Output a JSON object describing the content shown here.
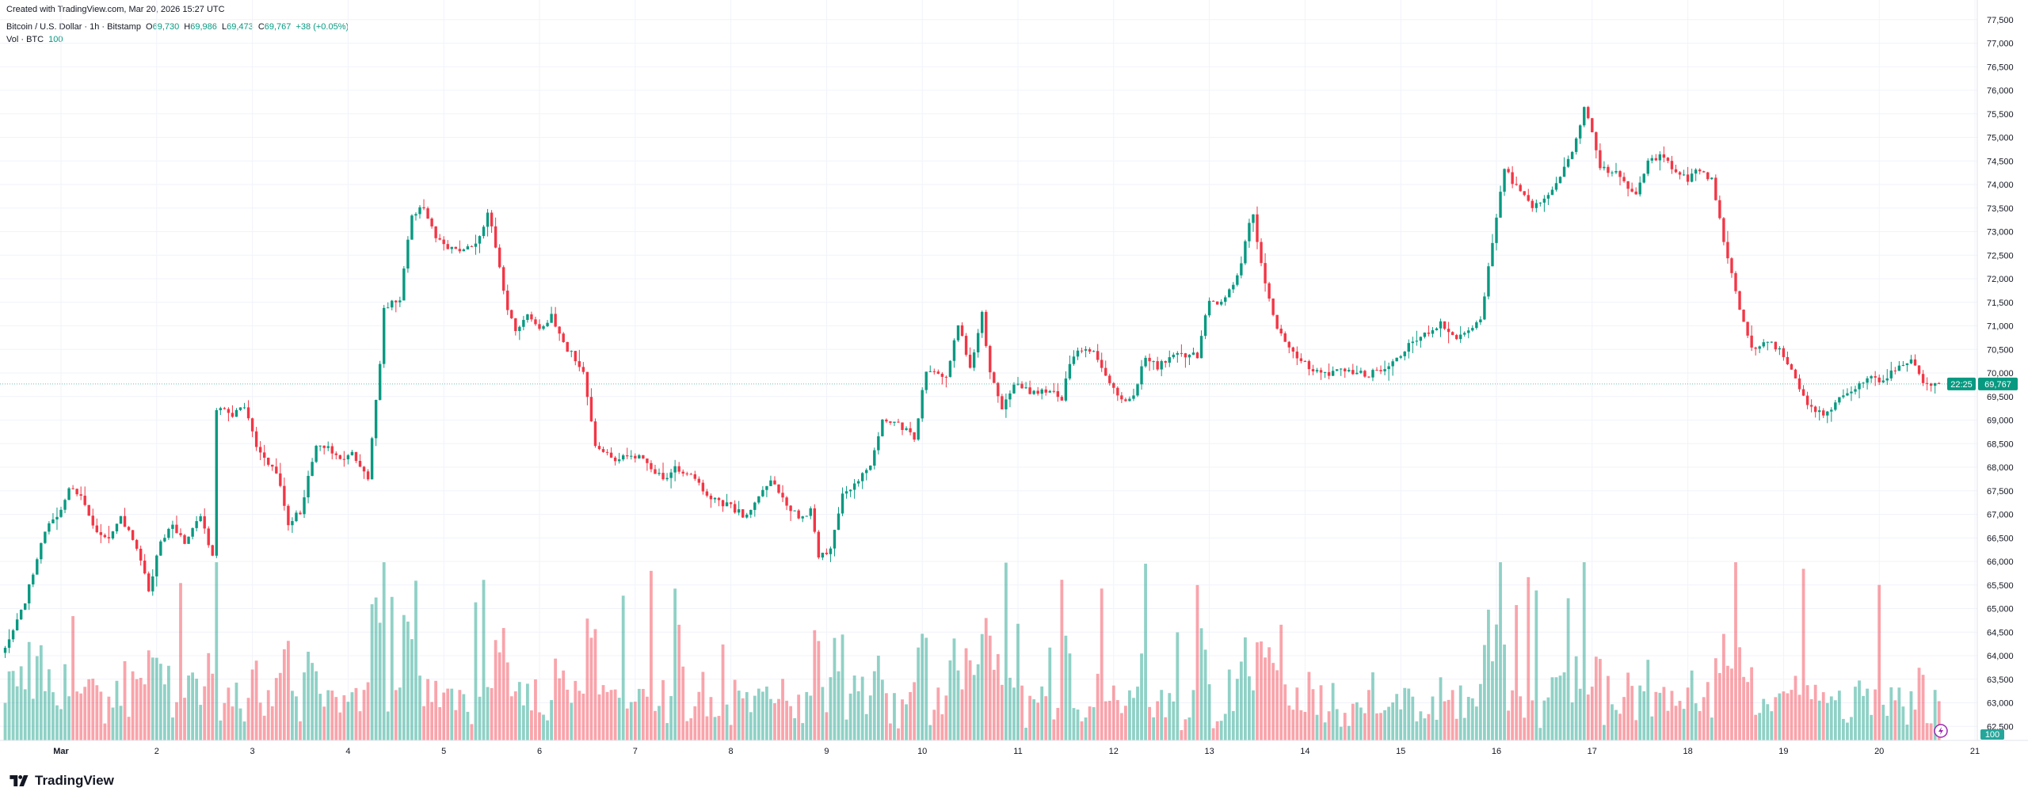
{
  "created_line": "Created with TradingView.com, Mar 20, 2026 15:27 UTC",
  "legend": {
    "symbol": "Bitcoin / U.S. Dollar · 1h · Bitstamp",
    "open_label": "O",
    "open": "69,730",
    "high_label": "H",
    "high": "69,986",
    "low_label": "L",
    "low": "69,473",
    "close_label": "C",
    "close": "69,767",
    "change": "+38 (+0.05%)",
    "volume_label": "Vol · BTC",
    "volume_value": "100"
  },
  "current_price": {
    "price": "69,767",
    "countdown": "22:25",
    "value": 69767
  },
  "volume_badge": "100",
  "logo_text": "TradingView",
  "colors": {
    "up": "#089981",
    "down": "#F23645",
    "grid": "#F0F3FA",
    "text": "#131722",
    "alert_icon": "#9C27B0"
  },
  "chart_data": {
    "type": "candlestick",
    "interval": "1h",
    "symbol": "BTCUSD",
    "price_ticks": [
      "62,500",
      "63,000",
      "63,500",
      "64,000",
      "64,500",
      "65,000",
      "65,500",
      "66,000",
      "66,500",
      "67,000",
      "67,500",
      "68,000",
      "68,500",
      "69,000",
      "69,500",
      "70,000",
      "70,500",
      "71,000",
      "71,500",
      "72,000",
      "72,500",
      "73,000",
      "73,500",
      "74,000",
      "74,500",
      "75,000",
      "75,500",
      "76,000",
      "76,500",
      "77,000",
      "77,500"
    ],
    "x_ticks": [
      {
        "day": 1,
        "label": "Mar"
      },
      {
        "day": 2,
        "label": "2"
      },
      {
        "day": 3,
        "label": "3"
      },
      {
        "day": 4,
        "label": "4"
      },
      {
        "day": 5,
        "label": "5"
      },
      {
        "day": 6,
        "label": "6"
      },
      {
        "day": 7,
        "label": "7"
      },
      {
        "day": 8,
        "label": "8"
      },
      {
        "day": 9,
        "label": "9"
      },
      {
        "day": 10,
        "label": "10"
      },
      {
        "day": 11,
        "label": "11"
      },
      {
        "day": 12,
        "label": "12"
      },
      {
        "day": 13,
        "label": "13"
      },
      {
        "day": 14,
        "label": "14"
      },
      {
        "day": 15,
        "label": "15"
      },
      {
        "day": 16,
        "label": "16"
      },
      {
        "day": 17,
        "label": "17"
      },
      {
        "day": 18,
        "label": "18"
      },
      {
        "day": 19,
        "label": "19"
      },
      {
        "day": 20,
        "label": "20"
      },
      {
        "day": 21,
        "label": "21"
      }
    ],
    "ylim": [
      62250,
      77750
    ],
    "approx_close_path": [
      [
        "02-28 10",
        64100
      ],
      [
        "02-28 15",
        65150
      ],
      [
        "02-28 20",
        66660
      ],
      [
        "02-28 23",
        66930
      ],
      [
        "03-01 02",
        67540
      ],
      [
        "03-01 05",
        67350
      ],
      [
        "03-01 09",
        66660
      ],
      [
        "03-01 12",
        66520
      ],
      [
        "03-01 15",
        66930
      ],
      [
        "03-01 18",
        66520
      ],
      [
        "03-01 22",
        65420
      ],
      [
        "03-02 01",
        66380
      ],
      [
        "03-02 04",
        66800
      ],
      [
        "03-02 07",
        66380
      ],
      [
        "03-02 11",
        66930
      ],
      [
        "03-02 14",
        66110
      ],
      [
        "03-02 15",
        69270
      ],
      [
        "03-02 19",
        69130
      ],
      [
        "03-02 22",
        69270
      ],
      [
        "03-03 01",
        68450
      ],
      [
        "03-03 06",
        67900
      ],
      [
        "03-03 09",
        66800
      ],
      [
        "03-03 12",
        67070
      ],
      [
        "03-03 16",
        68450
      ],
      [
        "03-03 19",
        68450
      ],
      [
        "03-03 22",
        68170
      ],
      [
        "03-04 01",
        68300
      ],
      [
        "03-04 05",
        67760
      ],
      [
        "03-04 08",
        70230
      ],
      [
        "03-04 09",
        71330
      ],
      [
        "03-04 13",
        71600
      ],
      [
        "03-04 16",
        73390
      ],
      [
        "03-04 19",
        73530
      ],
      [
        "03-04 22",
        72840
      ],
      [
        "03-05 03",
        72570
      ],
      [
        "03-05 08",
        72700
      ],
      [
        "03-05 11",
        73390
      ],
      [
        "03-05 13",
        72700
      ],
      [
        "03-05 16",
        71330
      ],
      [
        "03-05 18",
        70920
      ],
      [
        "03-05 21",
        71190
      ],
      [
        "03-06 00",
        70920
      ],
      [
        "03-06 03",
        71190
      ],
      [
        "03-06 07",
        70510
      ],
      [
        "03-06 11",
        70090
      ],
      [
        "03-06 14",
        68450
      ],
      [
        "03-06 18",
        68170
      ],
      [
        "03-06 23",
        68250
      ],
      [
        "03-07 02",
        68170
      ],
      [
        "03-07 07",
        67760
      ],
      [
        "03-07 10",
        67980
      ],
      [
        "03-07 15",
        67810
      ],
      [
        "03-07 18",
        67350
      ],
      [
        "03-07 23",
        67210
      ],
      [
        "03-08 04",
        66930
      ],
      [
        "03-08 07",
        67350
      ],
      [
        "03-08 10",
        67760
      ],
      [
        "03-08 14",
        67210
      ],
      [
        "03-08 17",
        66930
      ],
      [
        "03-08 20",
        67070
      ],
      [
        "03-08 22",
        66110
      ],
      [
        "03-09 01",
        66250
      ],
      [
        "03-09 04",
        67480
      ],
      [
        "03-09 07",
        67620
      ],
      [
        "03-09 11",
        68030
      ],
      [
        "03-09 14",
        69000
      ],
      [
        "03-09 19",
        68860
      ],
      [
        "03-09 22",
        68580
      ],
      [
        "03-10 01",
        70090
      ],
      [
        "03-10 06",
        69950
      ],
      [
        "03-10 09",
        71050
      ],
      [
        "03-10 12",
        70090
      ],
      [
        "03-10 15",
        71330
      ],
      [
        "03-10 17",
        69950
      ],
      [
        "03-10 20",
        69270
      ],
      [
        "03-11 00",
        69820
      ],
      [
        "03-11 03",
        69540
      ],
      [
        "03-11 08",
        69680
      ],
      [
        "03-11 11",
        69410
      ],
      [
        "03-11 13",
        70230
      ],
      [
        "03-11 16",
        70510
      ],
      [
        "03-11 19",
        70510
      ],
      [
        "03-11 22",
        69950
      ],
      [
        "03-12 02",
        69410
      ],
      [
        "03-12 05",
        69540
      ],
      [
        "03-12 08",
        70370
      ],
      [
        "03-12 11",
        70090
      ],
      [
        "03-12 14",
        70370
      ],
      [
        "03-12 18",
        70370
      ],
      [
        "03-12 21",
        70370
      ],
      [
        "03-13 00",
        71600
      ],
      [
        "03-13 03",
        71470
      ],
      [
        "03-13 07",
        72020
      ],
      [
        "03-13 10",
        73120
      ],
      [
        "03-13 11",
        73390
      ],
      [
        "03-13 13",
        72290
      ],
      [
        "03-13 16",
        71190
      ],
      [
        "03-13 19",
        70650
      ],
      [
        "03-13 23",
        70230
      ],
      [
        "03-14 05",
        69950
      ],
      [
        "03-14 10",
        70090
      ],
      [
        "03-14 15",
        69950
      ],
      [
        "03-14 21",
        70090
      ],
      [
        "03-15 01",
        70510
      ],
      [
        "03-15 05",
        70780
      ],
      [
        "03-15 10",
        71050
      ],
      [
        "03-15 14",
        70780
      ],
      [
        "03-15 17",
        70920
      ],
      [
        "03-15 20",
        71190
      ],
      [
        "03-15 23",
        72700
      ],
      [
        "03-16 02",
        74350
      ],
      [
        "03-16 06",
        73800
      ],
      [
        "03-16 09",
        73530
      ],
      [
        "03-16 12",
        73660
      ],
      [
        "03-16 15",
        74080
      ],
      [
        "03-16 19",
        74630
      ],
      [
        "03-16 22",
        75590
      ],
      [
        "03-16 23",
        75450
      ],
      [
        "03-17 02",
        74350
      ],
      [
        "03-17 06",
        74220
      ],
      [
        "03-17 11",
        73800
      ],
      [
        "03-17 14",
        74490
      ],
      [
        "03-17 17",
        74630
      ],
      [
        "03-17 20",
        74350
      ],
      [
        "03-18 00",
        74080
      ],
      [
        "03-18 03",
        74350
      ],
      [
        "03-18 06",
        74080
      ],
      [
        "03-18 09",
        72840
      ],
      [
        "03-18 13",
        71330
      ],
      [
        "03-18 16",
        70510
      ],
      [
        "03-18 19",
        70650
      ],
      [
        "03-18 22",
        70570
      ],
      [
        "03-19 01",
        70230
      ],
      [
        "03-19 06",
        69270
      ],
      [
        "03-19 11",
        69130
      ],
      [
        "03-19 14",
        69540
      ],
      [
        "03-19 18",
        69680
      ],
      [
        "03-19 21",
        69950
      ],
      [
        "03-20 00",
        69820
      ],
      [
        "03-20 04",
        70090
      ],
      [
        "03-20 08",
        70230
      ],
      [
        "03-20 12",
        69730
      ],
      [
        "03-20 15",
        69767
      ]
    ]
  }
}
